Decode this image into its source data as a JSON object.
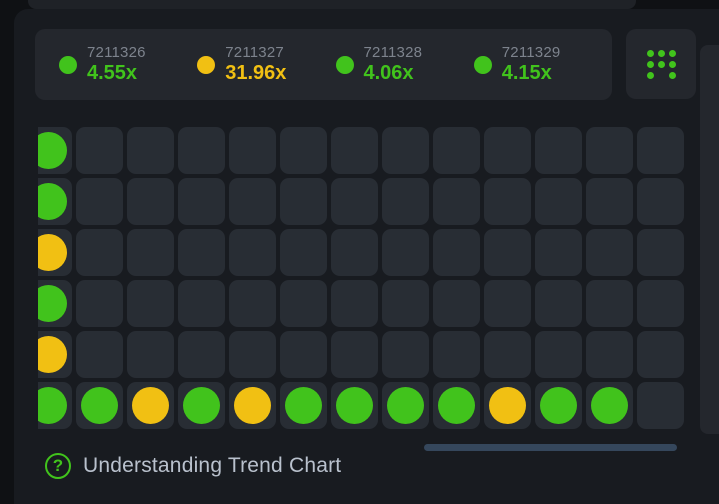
{
  "theme": {
    "page_bg": "#0f1114",
    "strip_bg": "#1f2227",
    "card_bg": "#181b20",
    "panel_bg": "#24272d",
    "cell_bg": "#282d34",
    "green": "#41c31c",
    "yellow": "#f1c013",
    "id_text": "#7d838d",
    "footer_text": "#b9c1cd",
    "scrollbar": "#35475c"
  },
  "recent_results": [
    {
      "game_id": "7211326",
      "multiplier": "4.55x",
      "color": "green"
    },
    {
      "game_id": "7211327",
      "multiplier": "31.96x",
      "color": "yellow"
    },
    {
      "game_id": "7211328",
      "multiplier": "4.06x",
      "color": "green"
    },
    {
      "game_id": "7211329",
      "multiplier": "4.15x",
      "color": "green"
    }
  ],
  "trend_grid": {
    "rows": 6,
    "cols": 13,
    "dots": [
      {
        "row": 0,
        "col": 0,
        "color": "green"
      },
      {
        "row": 1,
        "col": 0,
        "color": "green"
      },
      {
        "row": 2,
        "col": 0,
        "color": "yellow"
      },
      {
        "row": 3,
        "col": 0,
        "color": "green"
      },
      {
        "row": 4,
        "col": 0,
        "color": "yellow"
      },
      {
        "row": 5,
        "col": 0,
        "color": "green"
      },
      {
        "row": 5,
        "col": 1,
        "color": "green"
      },
      {
        "row": 5,
        "col": 2,
        "color": "yellow"
      },
      {
        "row": 5,
        "col": 3,
        "color": "green"
      },
      {
        "row": 5,
        "col": 4,
        "color": "yellow"
      },
      {
        "row": 5,
        "col": 5,
        "color": "green"
      },
      {
        "row": 5,
        "col": 6,
        "color": "green"
      },
      {
        "row": 5,
        "col": 7,
        "color": "green"
      },
      {
        "row": 5,
        "col": 8,
        "color": "green"
      },
      {
        "row": 5,
        "col": 9,
        "color": "yellow"
      },
      {
        "row": 5,
        "col": 10,
        "color": "green"
      },
      {
        "row": 5,
        "col": 11,
        "color": "green"
      }
    ]
  },
  "grid_button_icon": {
    "pattern": [
      1,
      1,
      1,
      1,
      1,
      1,
      1,
      0,
      1
    ]
  },
  "footer": {
    "help_label": "Understanding Trend Chart",
    "help_glyph": "?"
  }
}
